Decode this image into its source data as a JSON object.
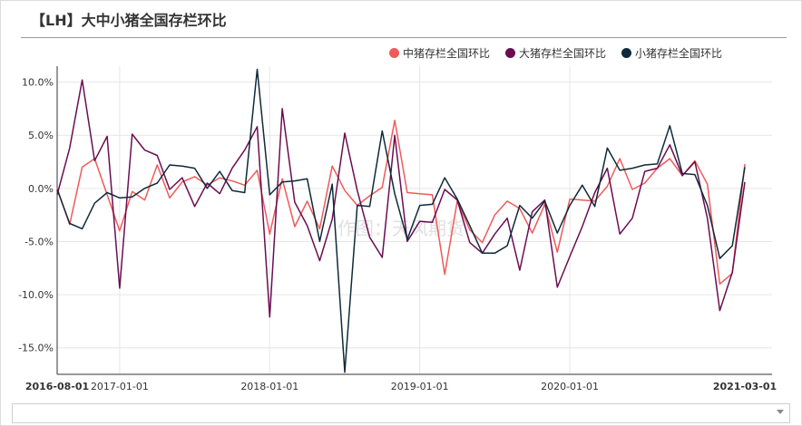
{
  "title": "【LH】大中小猪全国存栏环比",
  "watermark": "作图：天风期货",
  "colors": {
    "mid": "#f05a5a",
    "large": "#6b0d52",
    "small": "#0f2a3a"
  },
  "chart_data": {
    "type": "line",
    "title": "【LH】大中小猪全国存栏环比",
    "xlabel": "",
    "ylabel": "",
    "ylim": [
      -17.5,
      11.5
    ],
    "yticks": [
      10,
      5,
      0,
      -5,
      -10,
      -15
    ],
    "ytick_labels": [
      "10.0%",
      "5.0%",
      "0.0%",
      "-5.0%",
      "-10.0%",
      "-15.0%"
    ],
    "xtick_labels": [
      {
        "label": "2016-08-01",
        "bold": true
      },
      {
        "label": "2017-01-01",
        "bold": false
      },
      {
        "label": "2018-01-01",
        "bold": false
      },
      {
        "label": "2019-01-01",
        "bold": false
      },
      {
        "label": "2020-01-01",
        "bold": false
      },
      {
        "label": "2021-03-01",
        "bold": true
      }
    ],
    "x": [
      "2016-08",
      "2016-09",
      "2016-10",
      "2016-11",
      "2016-12",
      "2017-01",
      "2017-02",
      "2017-03",
      "2017-04",
      "2017-05",
      "2017-06",
      "2017-07",
      "2017-08",
      "2017-09",
      "2017-10",
      "2017-11",
      "2017-12",
      "2018-01",
      "2018-02",
      "2018-03",
      "2018-04",
      "2018-05",
      "2018-06",
      "2018-07",
      "2018-08",
      "2018-09",
      "2018-10",
      "2018-11",
      "2018-12",
      "2019-01",
      "2019-02",
      "2019-03",
      "2019-04",
      "2019-05",
      "2019-06",
      "2019-07",
      "2019-08",
      "2019-09",
      "2019-10",
      "2019-11",
      "2019-12",
      "2020-01",
      "2020-02",
      "2020-03",
      "2020-04",
      "2020-05",
      "2020-06",
      "2020-07",
      "2020-08",
      "2020-09",
      "2020-10",
      "2020-11",
      "2020-12",
      "2021-01",
      "2021-02",
      "2021-03"
    ],
    "legend_position": "top-right",
    "grid": true,
    "series": [
      {
        "name": "中猪存栏全国环比",
        "color": "#f05a5a",
        "values": [
          0,
          -3.4,
          2,
          2.8,
          -0.6,
          -4,
          -0.3,
          -1.1,
          2.2,
          -0.9,
          0.6,
          1.1,
          0.3,
          1,
          0.7,
          0.3,
          1.7,
          -4.3,
          0.9,
          -3.6,
          -1.2,
          -3.8,
          2.1,
          -0.2,
          -1.6,
          -0.7,
          0.1,
          6.4,
          -0.4,
          -0.5,
          -0.6,
          -8.1,
          -1.2,
          -3.9,
          -5.1,
          -2.5,
          -1.2,
          -1.9,
          -4.2,
          -1.5,
          -6,
          -1,
          -1.1,
          -1.2,
          0.2,
          2.8,
          -0.1,
          0.5,
          1.9,
          2.8,
          1.2,
          2.6,
          0.4,
          -9,
          -8,
          2.3
        ]
      },
      {
        "name": "大猪存栏全国环比",
        "color": "#6b0d52",
        "values": [
          -0.6,
          3.8,
          10.2,
          2.6,
          4.9,
          -9.4,
          5.1,
          3.6,
          3.1,
          -0.1,
          1,
          -1.7,
          0.5,
          -0.5,
          1.9,
          3.6,
          5.8,
          -12.1,
          7.5,
          -1.3,
          -3.5,
          -6.8,
          -2.9,
          5.2,
          -0.2,
          -4.6,
          -6.5,
          5,
          -5,
          -3.1,
          -3.2,
          -0.1,
          -1.1,
          -5.1,
          -6.1,
          -4.3,
          -2.8,
          -7.7,
          -2.2,
          -1.1,
          -9.3,
          -6.4,
          -3.6,
          -0.4,
          1.9,
          -4.3,
          -2.8,
          1.6,
          1.9,
          4.1,
          1.2,
          2.5,
          -2.8,
          -11.5,
          -7.9,
          0.6
        ]
      },
      {
        "name": "小猪存栏全国环比",
        "color": "#0f2a3a",
        "values": [
          -0.1,
          -3.3,
          -3.8,
          -1.4,
          -0.4,
          -0.9,
          -0.8,
          0,
          0.5,
          2.2,
          2.1,
          1.9,
          0,
          1.6,
          -0.2,
          -0.4,
          11.2,
          -0.6,
          0.6,
          0.7,
          0.9,
          -5,
          0.4,
          -17.3,
          -1.6,
          -1.7,
          5.4,
          -0.5,
          -4.8,
          -1.6,
          -1.5,
          1,
          -1,
          -3.5,
          -6.1,
          -6.1,
          -5.4,
          -1.6,
          -2.8,
          -1.2,
          -4.2,
          -1.6,
          0.3,
          -1.7,
          3.8,
          1.7,
          1.9,
          2.2,
          2.3,
          5.9,
          1.4,
          1.3,
          -1.6,
          -6.6,
          -5.4,
          2
        ]
      }
    ]
  },
  "scrollbar": {
    "arrow_icon": "chevron-down-icon"
  }
}
